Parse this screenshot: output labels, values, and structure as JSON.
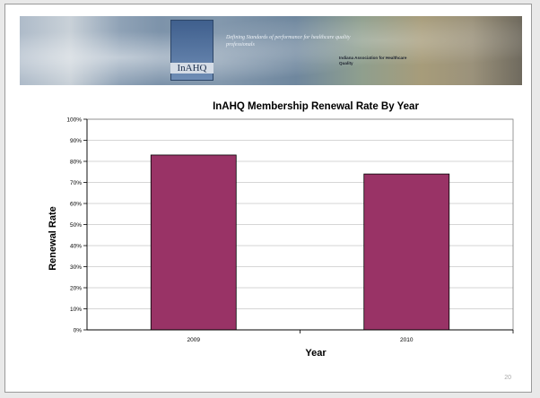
{
  "banner": {
    "logo_text": "InAHQ",
    "tagline": "Defining Standards of performance for healthcare quality professionals",
    "association": "Indiana Association for Healthcare Quality"
  },
  "slide_number": "20",
  "chart_data": {
    "type": "bar",
    "title": "InAHQ Membership Renewal Rate By Year",
    "xlabel": "Year",
    "ylabel": "Renewal Rate",
    "categories": [
      "2009",
      "2010"
    ],
    "series": [
      {
        "values": [
          0.83,
          0.74
        ]
      }
    ],
    "ylim": [
      0,
      1
    ],
    "yticks": [
      "0%",
      "10%",
      "20%",
      "30%",
      "40%",
      "50%",
      "60%",
      "70%",
      "80%",
      "90%",
      "100%"
    ],
    "grid": true,
    "legend": "none",
    "bar_color": "#993366"
  }
}
